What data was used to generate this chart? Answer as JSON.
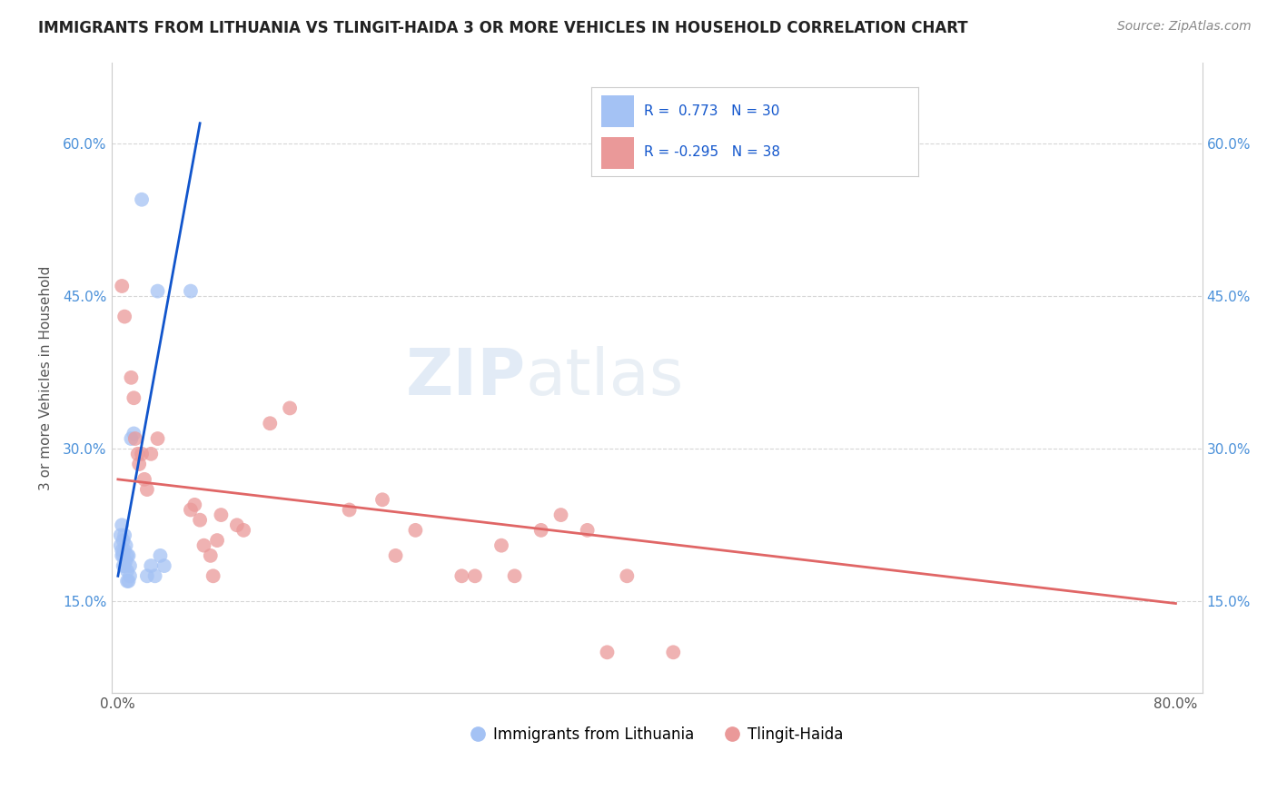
{
  "title": "IMMIGRANTS FROM LITHUANIA VS TLINGIT-HAIDA 3 OR MORE VEHICLES IN HOUSEHOLD CORRELATION CHART",
  "source": "Source: ZipAtlas.com",
  "ylabel": "3 or more Vehicles in Household",
  "legend_label_1": "Immigrants from Lithuania",
  "legend_label_2": "Tlingit-Haida",
  "r1": 0.773,
  "n1": 30,
  "r2": -0.295,
  "n2": 38,
  "xlim": [
    -0.005,
    0.82
  ],
  "ylim": [
    0.06,
    0.68
  ],
  "xticks": [
    0.0,
    0.2,
    0.4,
    0.6,
    0.8
  ],
  "xtick_labels": [
    "0.0%",
    "",
    "",
    "",
    "80.0%"
  ],
  "yticks": [
    0.15,
    0.3,
    0.45,
    0.6
  ],
  "ytick_labels": [
    "15.0%",
    "30.0%",
    "45.0%",
    "60.0%"
  ],
  "color_blue": "#a4c2f4",
  "color_pink": "#ea9999",
  "line_color_blue": "#1155cc",
  "line_color_pink": "#e06666",
  "watermark_zip": "ZIP",
  "watermark_atlas": "atlas",
  "blue_points": [
    [
      0.002,
      0.215
    ],
    [
      0.002,
      0.205
    ],
    [
      0.003,
      0.225
    ],
    [
      0.003,
      0.195
    ],
    [
      0.003,
      0.2
    ],
    [
      0.004,
      0.21
    ],
    [
      0.004,
      0.195
    ],
    [
      0.004,
      0.185
    ],
    [
      0.005,
      0.215
    ],
    [
      0.005,
      0.2
    ],
    [
      0.005,
      0.185
    ],
    [
      0.006,
      0.205
    ],
    [
      0.006,
      0.19
    ],
    [
      0.007,
      0.195
    ],
    [
      0.007,
      0.17
    ],
    [
      0.007,
      0.18
    ],
    [
      0.008,
      0.195
    ],
    [
      0.008,
      0.17
    ],
    [
      0.009,
      0.185
    ],
    [
      0.009,
      0.175
    ],
    [
      0.01,
      0.31
    ],
    [
      0.012,
      0.315
    ],
    [
      0.022,
      0.175
    ],
    [
      0.025,
      0.185
    ],
    [
      0.03,
      0.455
    ],
    [
      0.055,
      0.455
    ],
    [
      0.032,
      0.195
    ],
    [
      0.035,
      0.185
    ],
    [
      0.018,
      0.545
    ],
    [
      0.028,
      0.175
    ]
  ],
  "pink_points": [
    [
      0.003,
      0.46
    ],
    [
      0.005,
      0.43
    ],
    [
      0.01,
      0.37
    ],
    [
      0.012,
      0.35
    ],
    [
      0.013,
      0.31
    ],
    [
      0.015,
      0.295
    ],
    [
      0.016,
      0.285
    ],
    [
      0.018,
      0.295
    ],
    [
      0.02,
      0.27
    ],
    [
      0.022,
      0.26
    ],
    [
      0.025,
      0.295
    ],
    [
      0.03,
      0.31
    ],
    [
      0.055,
      0.24
    ],
    [
      0.058,
      0.245
    ],
    [
      0.062,
      0.23
    ],
    [
      0.065,
      0.205
    ],
    [
      0.07,
      0.195
    ],
    [
      0.072,
      0.175
    ],
    [
      0.075,
      0.21
    ],
    [
      0.078,
      0.235
    ],
    [
      0.09,
      0.225
    ],
    [
      0.095,
      0.22
    ],
    [
      0.115,
      0.325
    ],
    [
      0.13,
      0.34
    ],
    [
      0.175,
      0.24
    ],
    [
      0.2,
      0.25
    ],
    [
      0.21,
      0.195
    ],
    [
      0.225,
      0.22
    ],
    [
      0.26,
      0.175
    ],
    [
      0.27,
      0.175
    ],
    [
      0.29,
      0.205
    ],
    [
      0.3,
      0.175
    ],
    [
      0.32,
      0.22
    ],
    [
      0.335,
      0.235
    ],
    [
      0.355,
      0.22
    ],
    [
      0.37,
      0.1
    ],
    [
      0.385,
      0.175
    ],
    [
      0.42,
      0.1
    ]
  ],
  "blue_line_x": [
    0.0,
    0.062
  ],
  "blue_line_y_start": 0.175,
  "blue_line_y_end": 0.62,
  "pink_line_x": [
    0.0,
    0.8
  ],
  "pink_line_y_start": 0.27,
  "pink_line_y_end": 0.148
}
